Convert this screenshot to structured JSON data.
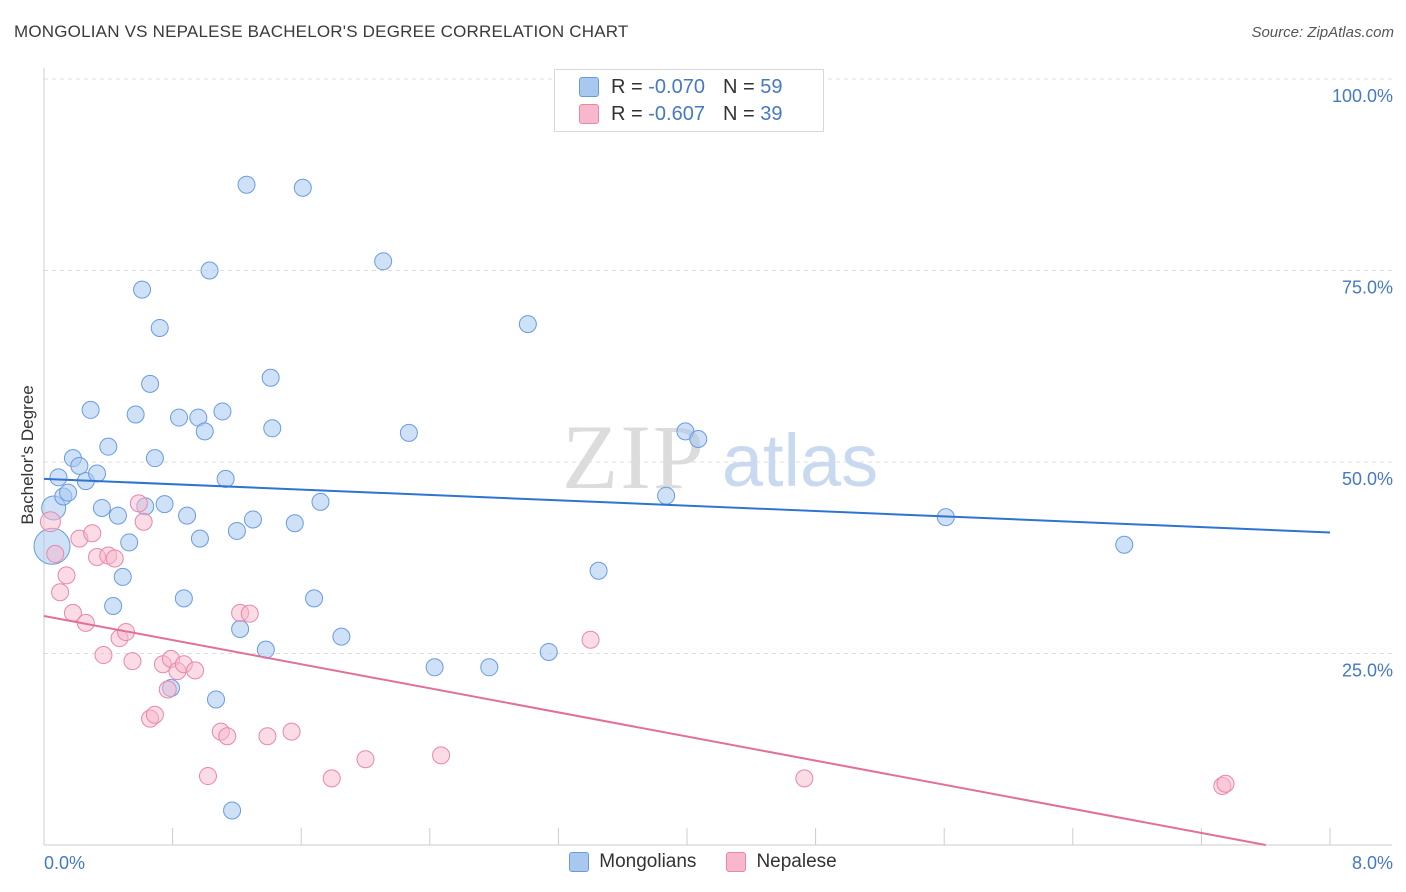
{
  "title": "MONGOLIAN VS NEPALESE BACHELOR'S DEGREE CORRELATION CHART",
  "source": "Source: ZipAtlas.com",
  "watermark": {
    "part1": "ZIP",
    "part2": "atlas"
  },
  "legend": {
    "r_label": "R =",
    "n_label": "N =",
    "rows": [
      {
        "r": "-0.070",
        "n": "59",
        "color": "#a8c8f0",
        "border": "#6a9be0"
      },
      {
        "r": "-0.607",
        "n": "39",
        "color": "#f8b8cc",
        "border": "#e888a8"
      }
    ]
  },
  "bottom_legend": [
    {
      "label": "Mongolians",
      "color": "#a8c8f0",
      "border": "#6a9be0"
    },
    {
      "label": "Nepalese",
      "color": "#f8b8cc",
      "border": "#e888a8"
    }
  ],
  "chart_data": {
    "type": "scatter",
    "title": "MONGOLIAN VS NEPALESE BACHELOR'S DEGREE CORRELATION CHART",
    "xlabel": "",
    "ylabel": "Bachelor's Degree",
    "xlim": [
      0,
      8
    ],
    "ylim": [
      0,
      100
    ],
    "x_tick_labels": {
      "min": "0.0%",
      "max": "8.0%"
    },
    "y_ticks": [
      {
        "value": 100,
        "label": "100.0%"
      },
      {
        "value": 75,
        "label": "75.0%"
      },
      {
        "value": 50,
        "label": "50.0%"
      },
      {
        "value": 25,
        "label": "25.0%"
      }
    ],
    "series": [
      {
        "name": "Mongolians",
        "fill": "rgba(168,200,240,0.55)",
        "stroke": "#6a9be0",
        "line_color": "#2e74d0",
        "trend": {
          "x0": 0,
          "y0": 47.8,
          "x1": 8,
          "y1": 40.8
        },
        "points": [
          [
            0.05,
            39.0
          ],
          [
            0.06,
            44.0
          ],
          [
            0.09,
            48.0
          ],
          [
            0.12,
            45.5
          ],
          [
            0.15,
            46.0
          ],
          [
            0.18,
            50.5
          ],
          [
            0.22,
            49.5
          ],
          [
            0.26,
            47.5
          ],
          [
            0.29,
            56.8
          ],
          [
            0.33,
            48.5
          ],
          [
            0.36,
            44.0
          ],
          [
            0.4,
            52.0
          ],
          [
            0.43,
            31.2
          ],
          [
            0.46,
            43.0
          ],
          [
            0.49,
            35.0
          ],
          [
            0.53,
            39.5
          ],
          [
            0.57,
            56.2
          ],
          [
            0.61,
            72.5
          ],
          [
            0.63,
            44.2
          ],
          [
            0.66,
            60.2
          ],
          [
            0.69,
            50.5
          ],
          [
            0.72,
            67.5
          ],
          [
            0.75,
            44.5
          ],
          [
            0.79,
            20.5
          ],
          [
            0.84,
            55.8
          ],
          [
            0.87,
            32.2
          ],
          [
            0.89,
            43.0
          ],
          [
            0.96,
            55.8
          ],
          [
            0.97,
            40.0
          ],
          [
            1.0,
            54.0
          ],
          [
            1.03,
            75.0
          ],
          [
            1.07,
            19.0
          ],
          [
            1.11,
            56.6
          ],
          [
            1.13,
            47.8
          ],
          [
            1.17,
            4.5
          ],
          [
            1.2,
            41.0
          ],
          [
            1.22,
            28.2
          ],
          [
            1.26,
            86.2
          ],
          [
            1.3,
            42.5
          ],
          [
            1.38,
            25.5
          ],
          [
            1.41,
            61.0
          ],
          [
            1.42,
            54.4
          ],
          [
            1.56,
            42.0
          ],
          [
            1.61,
            85.8
          ],
          [
            1.68,
            32.2
          ],
          [
            1.72,
            44.8
          ],
          [
            1.85,
            27.2
          ],
          [
            2.11,
            76.2
          ],
          [
            2.27,
            53.8
          ],
          [
            2.43,
            23.2
          ],
          [
            2.77,
            23.2
          ],
          [
            3.01,
            68.0
          ],
          [
            3.14,
            25.2
          ],
          [
            3.45,
            35.8
          ],
          [
            3.87,
            45.6
          ],
          [
            3.99,
            54.0
          ],
          [
            4.07,
            53.0
          ],
          [
            5.61,
            42.8
          ],
          [
            6.72,
            39.2
          ]
        ]
      },
      {
        "name": "Nepalese",
        "fill": "rgba(248,184,204,0.5)",
        "stroke": "#e888a8",
        "line_color": "#e0709a",
        "trend": {
          "x0": 0,
          "y0": 29.9,
          "x1": 7.6,
          "y1": 0
        },
        "points": [
          [
            0.04,
            42.2
          ],
          [
            0.07,
            38.0
          ],
          [
            0.1,
            33.0
          ],
          [
            0.14,
            35.2
          ],
          [
            0.18,
            30.3
          ],
          [
            0.22,
            40.0
          ],
          [
            0.26,
            29.0
          ],
          [
            0.3,
            40.7
          ],
          [
            0.33,
            37.6
          ],
          [
            0.37,
            24.8
          ],
          [
            0.4,
            37.8
          ],
          [
            0.44,
            37.4
          ],
          [
            0.47,
            27.0
          ],
          [
            0.51,
            27.8
          ],
          [
            0.55,
            24.0
          ],
          [
            0.59,
            44.6
          ],
          [
            0.62,
            42.2
          ],
          [
            0.66,
            16.5
          ],
          [
            0.69,
            17.0
          ],
          [
            0.74,
            23.6
          ],
          [
            0.77,
            20.3
          ],
          [
            0.79,
            24.3
          ],
          [
            0.83,
            22.7
          ],
          [
            0.87,
            23.6
          ],
          [
            0.94,
            22.8
          ],
          [
            1.02,
            9.0
          ],
          [
            1.1,
            14.8
          ],
          [
            1.14,
            14.2
          ],
          [
            1.22,
            30.3
          ],
          [
            1.28,
            30.2
          ],
          [
            1.39,
            14.2
          ],
          [
            1.54,
            14.8
          ],
          [
            1.79,
            8.7
          ],
          [
            2.0,
            11.2
          ],
          [
            2.47,
            11.7
          ],
          [
            3.4,
            26.8
          ],
          [
            4.73,
            8.7
          ],
          [
            7.33,
            7.7
          ],
          [
            7.35,
            8.0
          ]
        ]
      }
    ]
  }
}
